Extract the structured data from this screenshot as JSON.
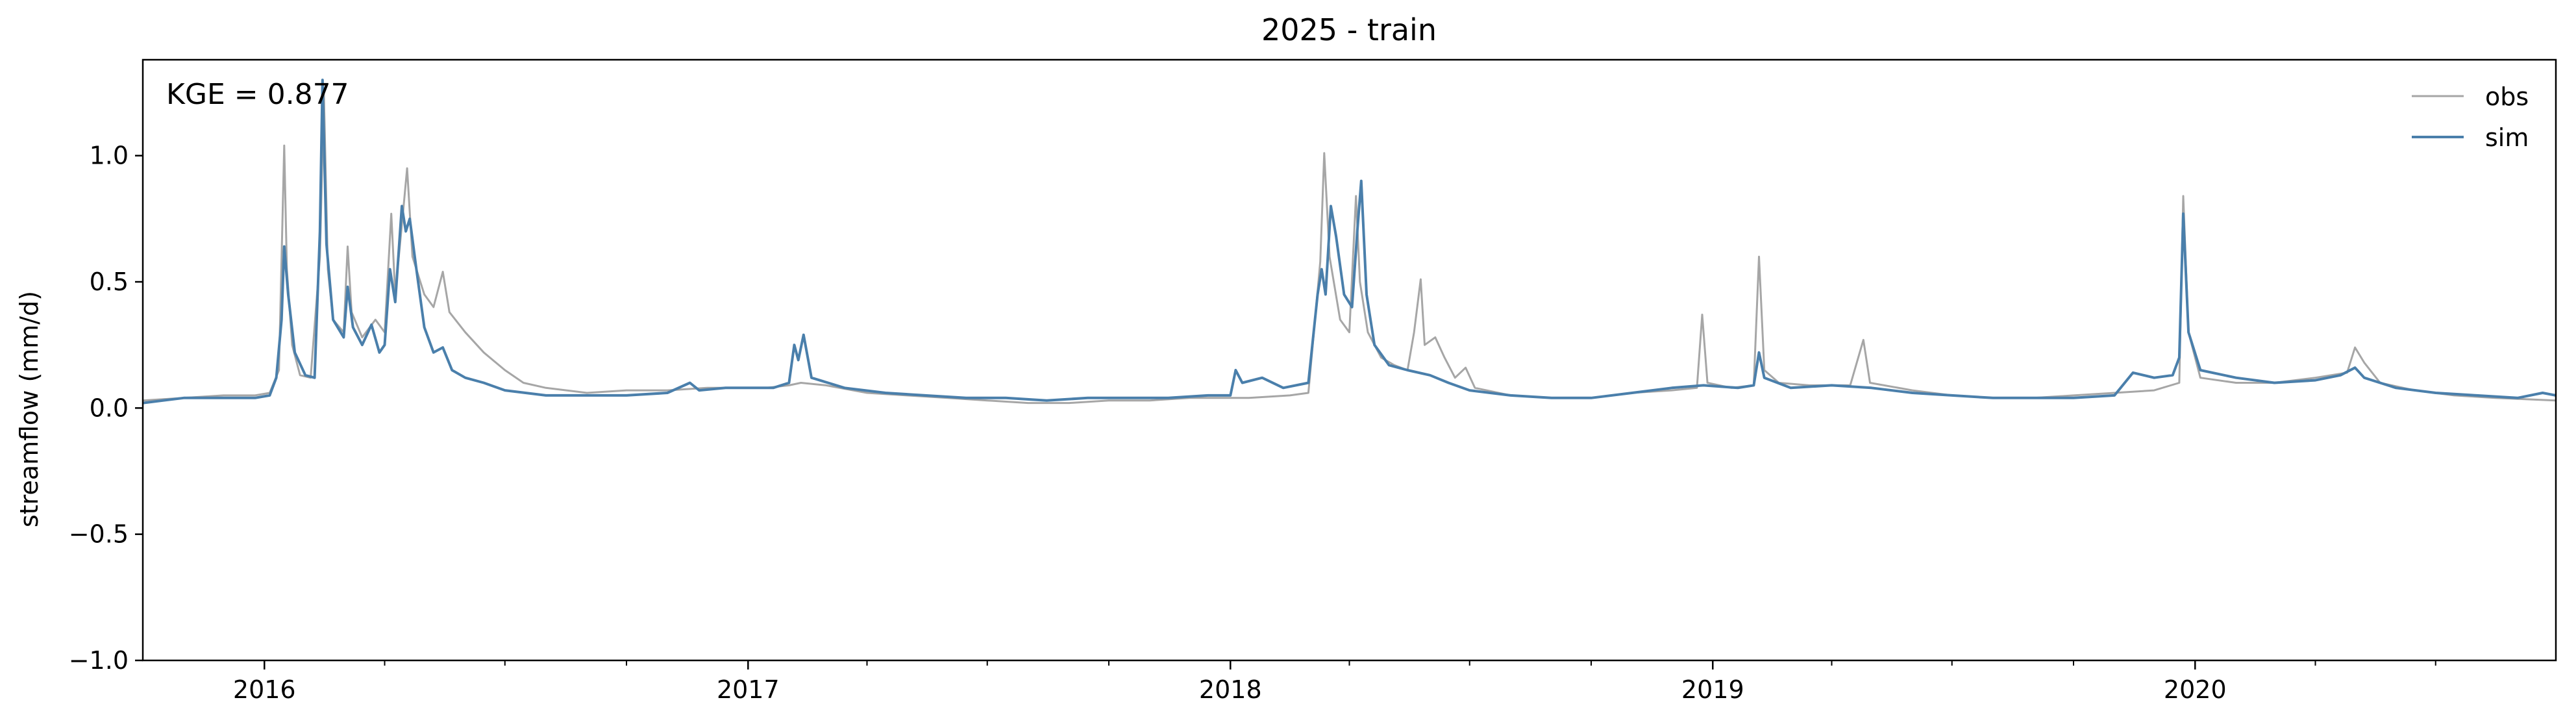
{
  "chart_data": {
    "type": "line",
    "title": "2025 - train",
    "xlabel": "",
    "ylabel": "streamflow (mm/d)",
    "annotation": "KGE = 0.877",
    "xlim": [
      "2015-10-01",
      "2020-09-30"
    ],
    "ylim": [
      -1.0,
      1.38
    ],
    "yticks": [
      {
        "value": 1.0,
        "label": "1.0"
      },
      {
        "value": 0.5,
        "label": "0.5"
      },
      {
        "value": 0.0,
        "label": "0.0"
      },
      {
        "value": -0.5,
        "label": "−0.5"
      },
      {
        "value": -1.0,
        "label": "−1.0"
      }
    ],
    "xticks": [
      {
        "value": "2016-01-01",
        "label": "2016"
      },
      {
        "value": "2017-01-01",
        "label": "2017"
      },
      {
        "value": "2018-01-01",
        "label": "2018"
      },
      {
        "value": "2019-01-01",
        "label": "2019"
      },
      {
        "value": "2020-01-01",
        "label": "2020"
      }
    ],
    "grid": false,
    "legend_position": "top-right",
    "series": [
      {
        "name": "obs",
        "color": "#a6a6a6",
        "points": [
          [
            "2015-10-01",
            0.03
          ],
          [
            "2015-11-01",
            0.04
          ],
          [
            "2015-12-01",
            0.05
          ],
          [
            "2015-12-25",
            0.05
          ],
          [
            "2016-01-05",
            0.06
          ],
          [
            "2016-01-12",
            0.15
          ],
          [
            "2016-01-16",
            1.04
          ],
          [
            "2016-01-18",
            0.55
          ],
          [
            "2016-01-22",
            0.25
          ],
          [
            "2016-01-28",
            0.13
          ],
          [
            "2016-02-05",
            0.12
          ],
          [
            "2016-02-12",
            0.6
          ],
          [
            "2016-02-15",
            1.25
          ],
          [
            "2016-02-18",
            0.55
          ],
          [
            "2016-02-22",
            0.35
          ],
          [
            "2016-03-01",
            0.3
          ],
          [
            "2016-03-04",
            0.64
          ],
          [
            "2016-03-07",
            0.38
          ],
          [
            "2016-03-15",
            0.28
          ],
          [
            "2016-03-25",
            0.35
          ],
          [
            "2016-04-01",
            0.3
          ],
          [
            "2016-04-06",
            0.77
          ],
          [
            "2016-04-09",
            0.45
          ],
          [
            "2016-04-15",
            0.78
          ],
          [
            "2016-04-18",
            0.95
          ],
          [
            "2016-04-22",
            0.6
          ],
          [
            "2016-05-01",
            0.45
          ],
          [
            "2016-05-08",
            0.4
          ],
          [
            "2016-05-15",
            0.54
          ],
          [
            "2016-05-20",
            0.38
          ],
          [
            "2016-06-01",
            0.3
          ],
          [
            "2016-06-15",
            0.22
          ],
          [
            "2016-07-01",
            0.15
          ],
          [
            "2016-07-15",
            0.1
          ],
          [
            "2016-08-01",
            0.08
          ],
          [
            "2016-09-01",
            0.06
          ],
          [
            "2016-10-01",
            0.07
          ],
          [
            "2016-11-01",
            0.07
          ],
          [
            "2016-12-01",
            0.08
          ],
          [
            "2017-01-15",
            0.08
          ],
          [
            "2017-02-01",
            0.09
          ],
          [
            "2017-02-10",
            0.1
          ],
          [
            "2017-03-01",
            0.09
          ],
          [
            "2017-04-01",
            0.06
          ],
          [
            "2017-05-01",
            0.05
          ],
          [
            "2017-06-01",
            0.04
          ],
          [
            "2017-07-01",
            0.03
          ],
          [
            "2017-08-01",
            0.02
          ],
          [
            "2017-09-01",
            0.02
          ],
          [
            "2017-10-01",
            0.03
          ],
          [
            "2017-11-01",
            0.03
          ],
          [
            "2017-12-01",
            0.04
          ],
          [
            "2018-01-15",
            0.04
          ],
          [
            "2018-02-15",
            0.05
          ],
          [
            "2018-03-01",
            0.06
          ],
          [
            "2018-03-10",
            0.58
          ],
          [
            "2018-03-13",
            1.01
          ],
          [
            "2018-03-17",
            0.6
          ],
          [
            "2018-03-25",
            0.35
          ],
          [
            "2018-04-01",
            0.3
          ],
          [
            "2018-04-06",
            0.84
          ],
          [
            "2018-04-09",
            0.5
          ],
          [
            "2018-04-15",
            0.3
          ],
          [
            "2018-04-25",
            0.2
          ],
          [
            "2018-05-05",
            0.17
          ],
          [
            "2018-05-15",
            0.15
          ],
          [
            "2018-05-20",
            0.3
          ],
          [
            "2018-05-25",
            0.51
          ],
          [
            "2018-05-28",
            0.25
          ],
          [
            "2018-06-05",
            0.28
          ],
          [
            "2018-06-12",
            0.2
          ],
          [
            "2018-06-20",
            0.12
          ],
          [
            "2018-06-28",
            0.16
          ],
          [
            "2018-07-05",
            0.08
          ],
          [
            "2018-08-01",
            0.05
          ],
          [
            "2018-09-01",
            0.04
          ],
          [
            "2018-10-01",
            0.04
          ],
          [
            "2018-11-01",
            0.06
          ],
          [
            "2018-12-01",
            0.07
          ],
          [
            "2018-12-20",
            0.08
          ],
          [
            "2018-12-24",
            0.37
          ],
          [
            "2018-12-28",
            0.1
          ],
          [
            "2019-01-15",
            0.08
          ],
          [
            "2019-02-01",
            0.09
          ],
          [
            "2019-02-05",
            0.6
          ],
          [
            "2019-02-09",
            0.15
          ],
          [
            "2019-02-20",
            0.1
          ],
          [
            "2019-03-15",
            0.09
          ],
          [
            "2019-04-15",
            0.09
          ],
          [
            "2019-04-25",
            0.27
          ],
          [
            "2019-04-30",
            0.1
          ],
          [
            "2019-06-01",
            0.07
          ],
          [
            "2019-07-01",
            0.05
          ],
          [
            "2019-08-01",
            0.04
          ],
          [
            "2019-09-01",
            0.04
          ],
          [
            "2019-10-01",
            0.05
          ],
          [
            "2019-11-01",
            0.06
          ],
          [
            "2019-12-01",
            0.07
          ],
          [
            "2019-12-20",
            0.1
          ],
          [
            "2019-12-23",
            0.84
          ],
          [
            "2019-12-27",
            0.3
          ],
          [
            "2020-01-05",
            0.12
          ],
          [
            "2020-02-01",
            0.1
          ],
          [
            "2020-03-01",
            0.1
          ],
          [
            "2020-04-01",
            0.12
          ],
          [
            "2020-04-25",
            0.14
          ],
          [
            "2020-05-01",
            0.24
          ],
          [
            "2020-05-08",
            0.18
          ],
          [
            "2020-05-20",
            0.1
          ],
          [
            "2020-06-15",
            0.07
          ],
          [
            "2020-07-15",
            0.05
          ],
          [
            "2020-08-15",
            0.04
          ],
          [
            "2020-09-30",
            0.03
          ]
        ]
      },
      {
        "name": "sim",
        "color": "#4a7fab",
        "points": [
          [
            "2015-10-01",
            0.02
          ],
          [
            "2015-11-01",
            0.04
          ],
          [
            "2015-12-01",
            0.04
          ],
          [
            "2015-12-25",
            0.04
          ],
          [
            "2016-01-05",
            0.05
          ],
          [
            "2016-01-10",
            0.12
          ],
          [
            "2016-01-14",
            0.35
          ],
          [
            "2016-01-16",
            0.64
          ],
          [
            "2016-01-19",
            0.45
          ],
          [
            "2016-01-24",
            0.22
          ],
          [
            "2016-02-01",
            0.13
          ],
          [
            "2016-02-08",
            0.12
          ],
          [
            "2016-02-12",
            0.7
          ],
          [
            "2016-02-14",
            1.3
          ],
          [
            "2016-02-17",
            0.65
          ],
          [
            "2016-02-22",
            0.35
          ],
          [
            "2016-03-01",
            0.28
          ],
          [
            "2016-03-04",
            0.48
          ],
          [
            "2016-03-08",
            0.32
          ],
          [
            "2016-03-15",
            0.25
          ],
          [
            "2016-03-22",
            0.33
          ],
          [
            "2016-03-28",
            0.22
          ],
          [
            "2016-04-01",
            0.25
          ],
          [
            "2016-04-05",
            0.55
          ],
          [
            "2016-04-09",
            0.42
          ],
          [
            "2016-04-14",
            0.8
          ],
          [
            "2016-04-17",
            0.7
          ],
          [
            "2016-04-20",
            0.75
          ],
          [
            "2016-04-25",
            0.55
          ],
          [
            "2016-05-01",
            0.32
          ],
          [
            "2016-05-08",
            0.22
          ],
          [
            "2016-05-15",
            0.24
          ],
          [
            "2016-05-22",
            0.15
          ],
          [
            "2016-06-01",
            0.12
          ],
          [
            "2016-06-15",
            0.1
          ],
          [
            "2016-07-01",
            0.07
          ],
          [
            "2016-08-01",
            0.05
          ],
          [
            "2016-09-01",
            0.05
          ],
          [
            "2016-10-01",
            0.05
          ],
          [
            "2016-11-01",
            0.06
          ],
          [
            "2016-11-18",
            0.1
          ],
          [
            "2016-11-25",
            0.07
          ],
          [
            "2016-12-15",
            0.08
          ],
          [
            "2017-01-20",
            0.08
          ],
          [
            "2017-02-01",
            0.1
          ],
          [
            "2017-02-05",
            0.25
          ],
          [
            "2017-02-08",
            0.19
          ],
          [
            "2017-02-12",
            0.29
          ],
          [
            "2017-02-18",
            0.12
          ],
          [
            "2017-03-15",
            0.08
          ],
          [
            "2017-04-15",
            0.06
          ],
          [
            "2017-05-15",
            0.05
          ],
          [
            "2017-06-15",
            0.04
          ],
          [
            "2017-07-15",
            0.04
          ],
          [
            "2017-08-15",
            0.03
          ],
          [
            "2017-09-15",
            0.04
          ],
          [
            "2017-10-15",
            0.04
          ],
          [
            "2017-11-15",
            0.04
          ],
          [
            "2017-12-15",
            0.05
          ],
          [
            "2018-01-01",
            0.05
          ],
          [
            "2018-01-05",
            0.15
          ],
          [
            "2018-01-10",
            0.1
          ],
          [
            "2018-01-25",
            0.12
          ],
          [
            "2018-02-10",
            0.08
          ],
          [
            "2018-03-01",
            0.1
          ],
          [
            "2018-03-08",
            0.45
          ],
          [
            "2018-03-11",
            0.55
          ],
          [
            "2018-03-14",
            0.45
          ],
          [
            "2018-03-18",
            0.8
          ],
          [
            "2018-03-22",
            0.68
          ],
          [
            "2018-03-28",
            0.45
          ],
          [
            "2018-04-03",
            0.4
          ],
          [
            "2018-04-07",
            0.7
          ],
          [
            "2018-04-10",
            0.9
          ],
          [
            "2018-04-14",
            0.45
          ],
          [
            "2018-04-20",
            0.25
          ],
          [
            "2018-05-01",
            0.17
          ],
          [
            "2018-05-15",
            0.15
          ],
          [
            "2018-06-01",
            0.13
          ],
          [
            "2018-06-15",
            0.1
          ],
          [
            "2018-07-01",
            0.07
          ],
          [
            "2018-08-01",
            0.05
          ],
          [
            "2018-09-01",
            0.04
          ],
          [
            "2018-10-01",
            0.04
          ],
          [
            "2018-11-01",
            0.06
          ],
          [
            "2018-12-01",
            0.08
          ],
          [
            "2018-12-25",
            0.09
          ],
          [
            "2019-01-20",
            0.08
          ],
          [
            "2019-02-01",
            0.09
          ],
          [
            "2019-02-05",
            0.22
          ],
          [
            "2019-02-09",
            0.12
          ],
          [
            "2019-03-01",
            0.08
          ],
          [
            "2019-04-01",
            0.09
          ],
          [
            "2019-05-01",
            0.08
          ],
          [
            "2019-06-01",
            0.06
          ],
          [
            "2019-07-01",
            0.05
          ],
          [
            "2019-08-01",
            0.04
          ],
          [
            "2019-09-01",
            0.04
          ],
          [
            "2019-10-01",
            0.04
          ],
          [
            "2019-11-01",
            0.05
          ],
          [
            "2019-11-15",
            0.14
          ],
          [
            "2019-12-01",
            0.12
          ],
          [
            "2019-12-15",
            0.13
          ],
          [
            "2019-12-20",
            0.2
          ],
          [
            "2019-12-23",
            0.77
          ],
          [
            "2019-12-27",
            0.3
          ],
          [
            "2020-01-05",
            0.15
          ],
          [
            "2020-02-01",
            0.12
          ],
          [
            "2020-03-01",
            0.1
          ],
          [
            "2020-04-01",
            0.11
          ],
          [
            "2020-04-20",
            0.13
          ],
          [
            "2020-05-01",
            0.16
          ],
          [
            "2020-05-08",
            0.12
          ],
          [
            "2020-06-01",
            0.08
          ],
          [
            "2020-07-01",
            0.06
          ],
          [
            "2020-08-01",
            0.05
          ],
          [
            "2020-09-01",
            0.04
          ],
          [
            "2020-09-20",
            0.06
          ],
          [
            "2020-09-30",
            0.05
          ]
        ]
      }
    ]
  }
}
